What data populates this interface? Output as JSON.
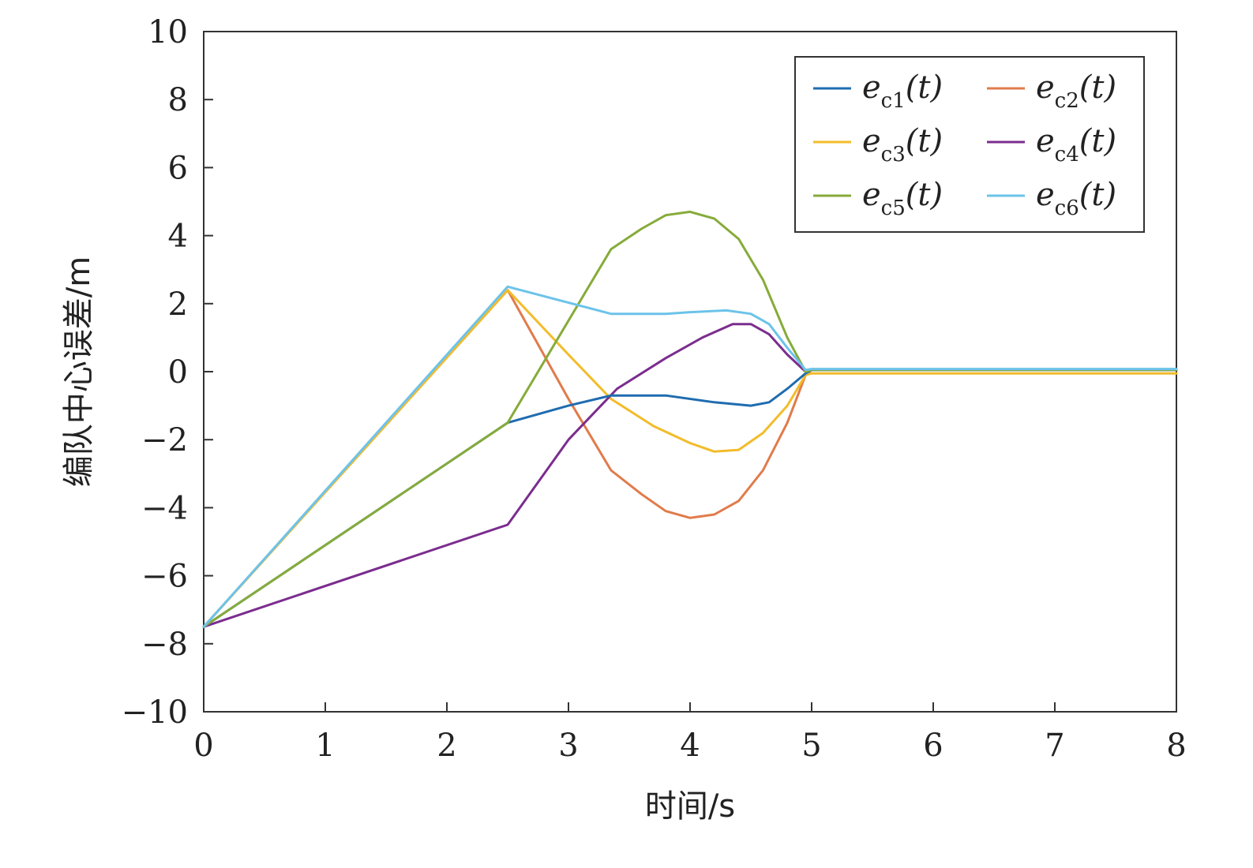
{
  "chart_data": {
    "type": "line",
    "xlabel": "时间/s",
    "ylabel": "编队中心误差/m",
    "xlim": [
      0,
      8
    ],
    "ylim": [
      -10,
      10
    ],
    "xticks": [
      "0",
      "1",
      "2",
      "3",
      "4",
      "5",
      "6",
      "7",
      "8"
    ],
    "yticks": [
      "10",
      "8",
      "6",
      "4",
      "2",
      "0",
      "−2",
      "−4",
      "−6",
      "−8",
      "−10"
    ],
    "grid": false,
    "legend_position": "top-right",
    "series": [
      {
        "name": "e_c1(t)",
        "label_base": "e",
        "label_sub": "c1",
        "label_tail": "(t)",
        "color": "#1f6cb0",
        "x": [
          0,
          2.5,
          3.0,
          3.35,
          3.8,
          4.2,
          4.5,
          4.65,
          4.8,
          4.95,
          5.0,
          8.0
        ],
        "y": [
          -7.5,
          -1.5,
          -1.0,
          -0.7,
          -0.7,
          -0.9,
          -1.0,
          -0.9,
          -0.5,
          -0.05,
          0.05,
          0.05
        ]
      },
      {
        "name": "e_c2(t)",
        "label_base": "e",
        "label_sub": "c2",
        "label_tail": "(t)",
        "color": "#e07b4a",
        "x": [
          0,
          2.5,
          3.0,
          3.35,
          3.6,
          3.8,
          4.0,
          4.2,
          4.4,
          4.6,
          4.8,
          4.95,
          5.0,
          8.0
        ],
        "y": [
          -7.5,
          2.4,
          -0.8,
          -2.9,
          -3.6,
          -4.1,
          -4.3,
          -4.2,
          -3.8,
          -2.9,
          -1.5,
          -0.1,
          0.05,
          0.05
        ]
      },
      {
        "name": "e_c3(t)",
        "label_base": "e",
        "label_sub": "c3",
        "label_tail": "(t)",
        "color": "#f2bc2a",
        "x": [
          0,
          2.5,
          3.0,
          3.35,
          3.7,
          4.0,
          4.2,
          4.4,
          4.6,
          4.8,
          4.95,
          5.0,
          8.0
        ],
        "y": [
          -7.5,
          2.4,
          0.5,
          -0.8,
          -1.6,
          -2.1,
          -2.35,
          -2.3,
          -1.8,
          -1.0,
          -0.1,
          -0.05,
          -0.05
        ]
      },
      {
        "name": "e_c4(t)",
        "label_base": "e",
        "label_sub": "c4",
        "label_tail": "(t)",
        "color": "#7b2d8e",
        "x": [
          0,
          2.5,
          3.0,
          3.4,
          3.8,
          4.1,
          4.35,
          4.5,
          4.65,
          4.8,
          4.95,
          5.0,
          8.0
        ],
        "y": [
          -7.5,
          -4.5,
          -2.0,
          -0.5,
          0.4,
          1.0,
          1.4,
          1.4,
          1.1,
          0.5,
          0.0,
          0.05,
          0.05
        ]
      },
      {
        "name": "e_c5(t)",
        "label_base": "e",
        "label_sub": "c5",
        "label_tail": "(t)",
        "color": "#86ab3a",
        "x": [
          0,
          2.5,
          3.35,
          3.6,
          3.8,
          4.0,
          4.2,
          4.4,
          4.6,
          4.8,
          4.95,
          5.0,
          8.0
        ],
        "y": [
          -7.5,
          -1.5,
          3.6,
          4.2,
          4.6,
          4.7,
          4.5,
          3.9,
          2.7,
          1.0,
          0.0,
          0.05,
          0.05
        ]
      },
      {
        "name": "e_c6(t)",
        "label_base": "e",
        "label_sub": "c6",
        "label_tail": "(t)",
        "color": "#6cc3ea",
        "x": [
          0,
          2.5,
          3.35,
          3.8,
          4.0,
          4.3,
          4.5,
          4.65,
          4.8,
          4.95,
          5.0,
          8.0
        ],
        "y": [
          -7.5,
          2.5,
          1.7,
          1.7,
          1.75,
          1.8,
          1.7,
          1.4,
          0.7,
          0.05,
          0.08,
          0.08
        ]
      }
    ]
  }
}
